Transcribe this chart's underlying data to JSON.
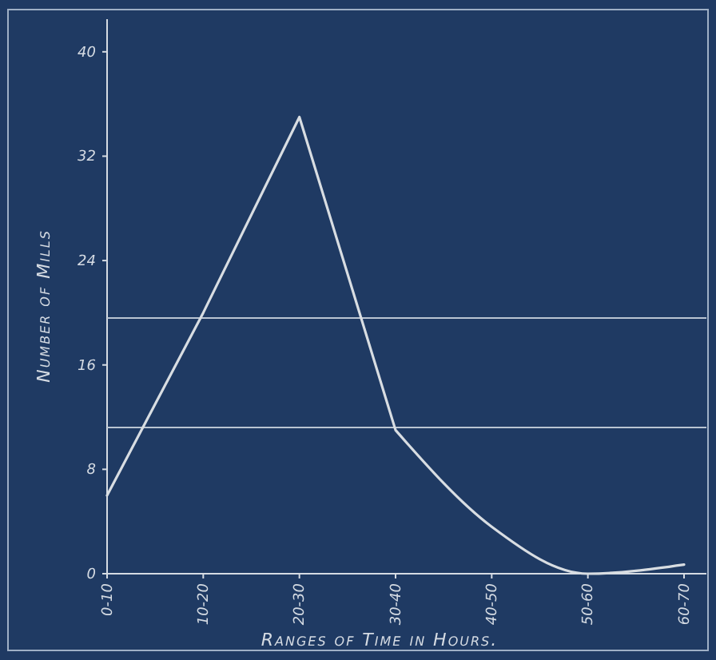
{
  "chart_data": {
    "type": "line",
    "xlabel": "Ranges of Time in Hours.",
    "ylabel": "Number of Mills",
    "categories": [
      "0-10",
      "10-20",
      "20-30",
      "30-40",
      "40-50",
      "50-60",
      "60-70"
    ],
    "values": [
      6,
      20,
      35,
      11,
      3.6,
      0,
      0.7
    ],
    "color": "#d8dde2",
    "ylim": [
      0,
      42.5
    ],
    "yticks": [
      0,
      8,
      16,
      {
        "value": 24,
        "label": "24"
      },
      32,
      40
    ],
    "ref_lines": [
      {
        "axis": "y",
        "value": 19.6,
        "color": "#b9c4d2"
      },
      {
        "axis": "y",
        "value": 11.2,
        "color": "#b9c4d2"
      }
    ],
    "grid": false,
    "marker": "none",
    "line_style": "solid"
  }
}
